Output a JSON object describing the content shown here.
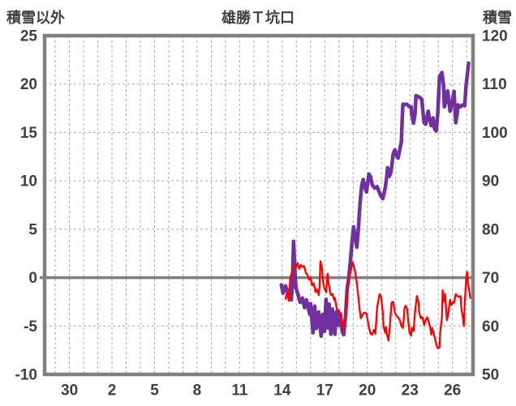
{
  "header": {
    "left_axis_title": "積雪以外",
    "chart_title": "雄勝Ｔ坑口",
    "right_axis_title": "積雪"
  },
  "chart_data": {
    "type": "line",
    "title": "雄勝Ｔ坑口",
    "grid": true,
    "legend": "none",
    "left_axis": {
      "label": "積雪以外",
      "min": -10,
      "max": 25,
      "ticks": [
        25,
        20,
        15,
        10,
        5,
        0,
        -5,
        -10
      ]
    },
    "right_axis": {
      "label": "積雪",
      "min": 50,
      "max": 120,
      "ticks": [
        120,
        110,
        100,
        90,
        80,
        70,
        60,
        50
      ]
    },
    "x_axis": {
      "tick_labels": [
        "30",
        "2",
        "5",
        "8",
        "11",
        "14",
        "17",
        "20",
        "23",
        "26"
      ],
      "tick_days": [
        -1,
        2,
        5,
        8,
        11,
        14,
        17,
        20,
        23,
        26
      ],
      "day_min": -2.75,
      "day_max": 27.45,
      "gridline_step": 1
    },
    "colors": {
      "frame": "#808080",
      "gridline": "#ABABAB",
      "zero_line": "#808080",
      "text": "#404040"
    },
    "series": [
      {
        "name": "積雪",
        "axis": "right",
        "color": "#7030A0",
        "width": 4.5,
        "points": [
          [
            13.94,
            68.5
          ],
          [
            14.06,
            66.8
          ],
          [
            14.23,
            68.3
          ],
          [
            14.46,
            66.3
          ],
          [
            14.63,
            65.4
          ],
          [
            14.71,
            68.0
          ],
          [
            14.8,
            77.5
          ],
          [
            14.91,
            70.5
          ],
          [
            14.97,
            67.9
          ],
          [
            15.14,
            66.2
          ],
          [
            15.26,
            64.9
          ],
          [
            15.43,
            65.8
          ],
          [
            15.57,
            63.8
          ],
          [
            15.66,
            64.1
          ],
          [
            15.71,
            65.4
          ],
          [
            15.94,
            62.4
          ],
          [
            16.0,
            64.6
          ],
          [
            16.17,
            58.6
          ],
          [
            16.29,
            64.1
          ],
          [
            16.4,
            59.5
          ],
          [
            16.51,
            60.7
          ],
          [
            16.57,
            62.9
          ],
          [
            16.74,
            57.9
          ],
          [
            16.86,
            62.4
          ],
          [
            16.97,
            58.9
          ],
          [
            17.09,
            65.5
          ],
          [
            17.2,
            59.6
          ],
          [
            17.31,
            64.5
          ],
          [
            17.43,
            58.3
          ],
          [
            17.54,
            63.5
          ],
          [
            17.71,
            58.3
          ],
          [
            17.83,
            63.0
          ],
          [
            18.0,
            60.1
          ],
          [
            18.11,
            62.5
          ],
          [
            18.23,
            58.9
          ],
          [
            18.34,
            58.2
          ],
          [
            18.46,
            62.0
          ],
          [
            18.51,
            64.3
          ],
          [
            18.57,
            67.4
          ],
          [
            18.69,
            69.9
          ],
          [
            18.8,
            73.3
          ],
          [
            18.91,
            77.0
          ],
          [
            19.03,
            80.5
          ],
          [
            19.14,
            78.5
          ],
          [
            19.26,
            76.3
          ],
          [
            19.37,
            80.0
          ],
          [
            19.49,
            85.5
          ],
          [
            19.6,
            89.0
          ],
          [
            19.71,
            90.3
          ],
          [
            19.83,
            88.5
          ],
          [
            19.94,
            87.7
          ],
          [
            20.11,
            91.4
          ],
          [
            20.23,
            90.8
          ],
          [
            20.34,
            89.2
          ],
          [
            20.51,
            88.5
          ],
          [
            20.69,
            88.8
          ],
          [
            20.86,
            87.5
          ],
          [
            20.97,
            86.8
          ],
          [
            21.09,
            86.3
          ],
          [
            21.26,
            88.5
          ],
          [
            21.37,
            90.9
          ],
          [
            21.43,
            92.7
          ],
          [
            21.54,
            90.9
          ],
          [
            21.66,
            91.7
          ],
          [
            21.83,
            95.6
          ],
          [
            21.94,
            96.4
          ],
          [
            22.06,
            95.2
          ],
          [
            22.17,
            94.7
          ],
          [
            22.29,
            96.5
          ],
          [
            22.4,
            98.1
          ],
          [
            22.46,
            103.0
          ],
          [
            22.51,
            105.8
          ],
          [
            22.8,
            105.8
          ],
          [
            22.97,
            105.3
          ],
          [
            23.09,
            105.3
          ],
          [
            23.14,
            103.6
          ],
          [
            23.26,
            101.9
          ],
          [
            23.37,
            104.0
          ],
          [
            23.43,
            107.6
          ],
          [
            23.66,
            107.3
          ],
          [
            23.83,
            106.9
          ],
          [
            24.0,
            102.0
          ],
          [
            24.11,
            101.7
          ],
          [
            24.29,
            104.4
          ],
          [
            24.4,
            102.5
          ],
          [
            24.51,
            101.4
          ],
          [
            24.63,
            103.0
          ],
          [
            24.74,
            100.8
          ],
          [
            24.86,
            100.3
          ],
          [
            24.97,
            104.0
          ],
          [
            25.09,
            111.5
          ],
          [
            25.26,
            112.4
          ],
          [
            25.37,
            109.9
          ],
          [
            25.43,
            105.3
          ],
          [
            25.54,
            106.5
          ],
          [
            25.66,
            108.6
          ],
          [
            25.77,
            106.0
          ],
          [
            25.83,
            104.4
          ],
          [
            26.0,
            106.4
          ],
          [
            26.11,
            108.5
          ],
          [
            26.23,
            102.0
          ],
          [
            26.34,
            104.0
          ],
          [
            26.4,
            105.7
          ],
          [
            26.57,
            105.3
          ],
          [
            26.74,
            105.7
          ],
          [
            26.86,
            105.5
          ],
          [
            26.97,
            109.9
          ],
          [
            27.03,
            111.5
          ],
          [
            27.14,
            114.3
          ]
        ]
      },
      {
        "name": "積雪以外",
        "axis": "left",
        "color": "#FF0000",
        "width": 2.3,
        "points": [
          [
            14.23,
            -2.2
          ],
          [
            14.34,
            -1.5
          ],
          [
            14.46,
            -2.4
          ],
          [
            14.57,
            0.0
          ],
          [
            14.74,
            0.8
          ],
          [
            14.86,
            1.2
          ],
          [
            14.97,
            1.0
          ],
          [
            15.09,
            1.5
          ],
          [
            15.2,
            0.9
          ],
          [
            15.31,
            1.3
          ],
          [
            15.43,
            1.1
          ],
          [
            15.54,
            1.2
          ],
          [
            15.66,
            0.5
          ],
          [
            15.77,
            0.3
          ],
          [
            15.89,
            -0.2
          ],
          [
            16.0,
            0.0
          ],
          [
            16.11,
            -0.8
          ],
          [
            16.23,
            -0.6
          ],
          [
            16.34,
            -1.5
          ],
          [
            16.46,
            -1.2
          ],
          [
            16.57,
            -1.8
          ],
          [
            16.63,
            -1.0
          ],
          [
            16.69,
            1.7
          ],
          [
            16.8,
            1.0
          ],
          [
            16.86,
            -0.3
          ],
          [
            16.97,
            -1.1
          ],
          [
            17.09,
            -1.5
          ],
          [
            17.2,
            0.4
          ],
          [
            17.26,
            -0.5
          ],
          [
            17.37,
            -1.4
          ],
          [
            17.43,
            -1.8
          ],
          [
            17.54,
            -1.7
          ],
          [
            17.66,
            -2.3
          ],
          [
            17.71,
            -2.1
          ],
          [
            17.83,
            -3.1
          ],
          [
            17.94,
            -3.5
          ],
          [
            18.0,
            -3.4
          ],
          [
            18.11,
            -4.0
          ],
          [
            18.23,
            -5.0
          ],
          [
            18.29,
            -5.2
          ],
          [
            18.4,
            -4.6
          ],
          [
            18.51,
            -3.4
          ],
          [
            18.57,
            -1.7
          ],
          [
            18.69,
            -0.2
          ],
          [
            18.8,
            0.5
          ],
          [
            18.97,
            1.6
          ],
          [
            19.14,
            0.6
          ],
          [
            19.26,
            -0.6
          ],
          [
            19.37,
            -2.0
          ],
          [
            19.43,
            -3.0
          ],
          [
            19.54,
            -4.2
          ],
          [
            19.71,
            -3.7
          ],
          [
            19.83,
            -3.6
          ],
          [
            19.94,
            -3.7
          ],
          [
            20.11,
            -5.1
          ],
          [
            20.23,
            -5.8
          ],
          [
            20.34,
            -5.9
          ],
          [
            20.46,
            -5.4
          ],
          [
            20.57,
            -5.8
          ],
          [
            20.69,
            -3.1
          ],
          [
            20.86,
            -1.7
          ],
          [
            20.97,
            -2.0
          ],
          [
            21.09,
            -3.6
          ],
          [
            21.14,
            -5.0
          ],
          [
            21.26,
            -5.7
          ],
          [
            21.31,
            -5.1
          ],
          [
            21.37,
            -5.8
          ],
          [
            21.49,
            -6.5
          ],
          [
            21.6,
            -4.8
          ],
          [
            21.71,
            -2.6
          ],
          [
            21.83,
            -2.5
          ],
          [
            21.94,
            -3.6
          ],
          [
            22.06,
            -4.0
          ],
          [
            22.17,
            -4.1
          ],
          [
            22.29,
            -4.4
          ],
          [
            22.4,
            -5.0
          ],
          [
            22.51,
            -5.2
          ],
          [
            22.63,
            -3.1
          ],
          [
            22.69,
            -2.9
          ],
          [
            22.8,
            -3.2
          ],
          [
            22.91,
            -4.8
          ],
          [
            22.97,
            -5.7
          ],
          [
            23.09,
            -6.0
          ],
          [
            23.14,
            -5.2
          ],
          [
            23.26,
            -5.5
          ],
          [
            23.37,
            -3.4
          ],
          [
            23.49,
            -1.9
          ],
          [
            23.6,
            -2.5
          ],
          [
            23.66,
            -3.6
          ],
          [
            23.77,
            -4.2
          ],
          [
            23.89,
            -4.1
          ],
          [
            24.0,
            -4.9
          ],
          [
            24.11,
            -4.4
          ],
          [
            24.23,
            -4.1
          ],
          [
            24.34,
            -4.6
          ],
          [
            24.46,
            -5.4
          ],
          [
            24.51,
            -5.9
          ],
          [
            24.57,
            -5.2
          ],
          [
            24.69,
            -5.8
          ],
          [
            24.8,
            -6.5
          ],
          [
            24.86,
            -6.9
          ],
          [
            24.97,
            -7.3
          ],
          [
            25.09,
            -7.2
          ],
          [
            25.14,
            -5.6
          ],
          [
            25.26,
            -4.1
          ],
          [
            25.31,
            -1.3
          ],
          [
            25.37,
            -2.5
          ],
          [
            25.49,
            -1.7
          ],
          [
            25.54,
            -3.0
          ],
          [
            25.6,
            -4.4
          ],
          [
            25.71,
            -3.7
          ],
          [
            25.83,
            -2.3
          ],
          [
            25.94,
            -2.8
          ],
          [
            26.06,
            -2.5
          ],
          [
            26.11,
            -2.6
          ],
          [
            26.23,
            -1.7
          ],
          [
            26.34,
            -1.9
          ],
          [
            26.46,
            -2.0
          ],
          [
            26.57,
            -1.9
          ],
          [
            26.63,
            -3.2
          ],
          [
            26.74,
            -4.2
          ],
          [
            26.8,
            -5.0
          ],
          [
            26.86,
            -2.9
          ],
          [
            26.97,
            0.0
          ],
          [
            27.03,
            0.6
          ],
          [
            27.09,
            -0.5
          ],
          [
            27.2,
            -1.5
          ],
          [
            27.26,
            -2.1
          ]
        ]
      }
    ]
  }
}
